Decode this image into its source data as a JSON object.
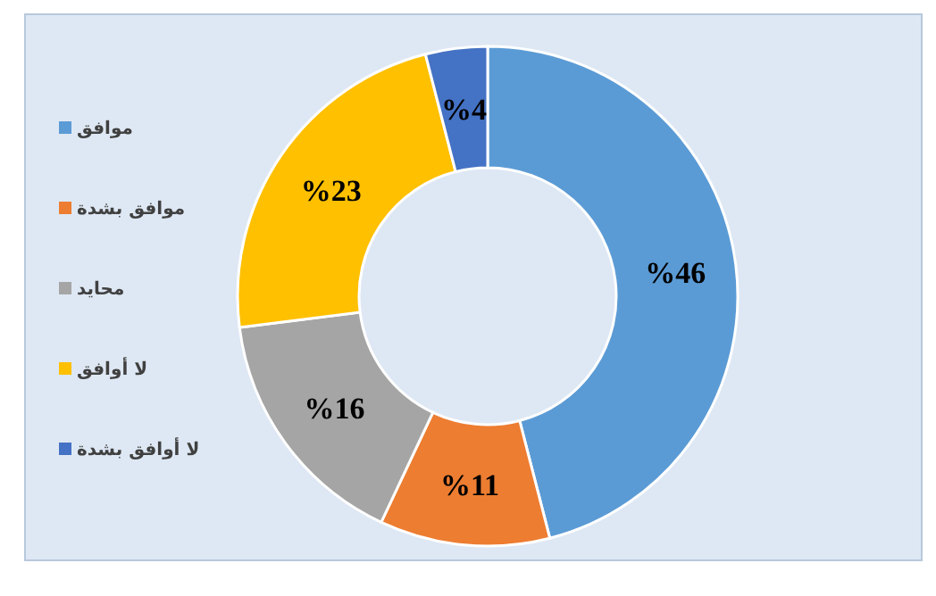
{
  "chart_data": {
    "type": "donut",
    "categories": [
      "موافق",
      "موافق بشدة",
      "محايد",
      "لا أوافق",
      "لا أوافق بشدة"
    ],
    "values": [
      46,
      11,
      16,
      23,
      4
    ],
    "colors": [
      "#5b9bd5",
      "#ed7d31",
      "#a5a5a5",
      "#ffc000",
      "#4472c4"
    ],
    "value_labels": [
      "%46",
      "%11",
      "%16",
      "%23",
      "%4"
    ],
    "legend": "left"
  }
}
